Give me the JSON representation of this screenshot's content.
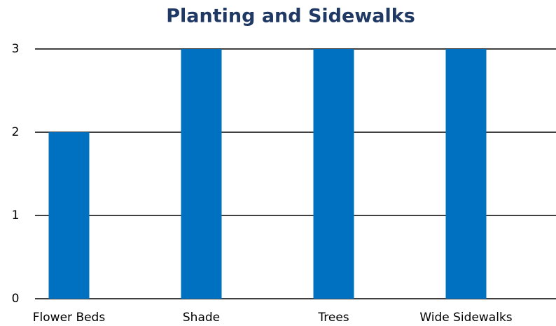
{
  "chart_data": {
    "type": "bar",
    "title": "Planting and Sidewalks",
    "categories": [
      "Flower Beds",
      "Shade",
      "Trees",
      "Wide Sidewalks"
    ],
    "values": [
      2,
      3,
      3,
      3
    ],
    "color": "#0070c0",
    "ylim": [
      0,
      3
    ],
    "yticks": [
      0,
      1,
      2,
      3
    ],
    "grid": true
  }
}
